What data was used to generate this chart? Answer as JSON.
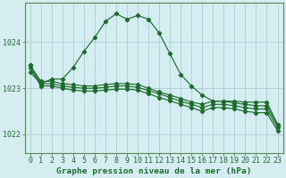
{
  "title": "Graphe pression niveau de la mer (hPa)",
  "background_color": "#d5ecf0",
  "grid_color": "#aecdd5",
  "line_color": "#1e6b2e",
  "xlim": [
    -0.5,
    23.5
  ],
  "ylim": [
    1021.6,
    1024.85
  ],
  "yticks": [
    1022,
    1023,
    1024
  ],
  "xticks": [
    0,
    1,
    2,
    3,
    4,
    5,
    6,
    7,
    8,
    9,
    10,
    11,
    12,
    13,
    14,
    15,
    16,
    17,
    18,
    19,
    20,
    21,
    22,
    23
  ],
  "series1_x": [
    0,
    1,
    2,
    3,
    4,
    5,
    6,
    7,
    8,
    9,
    10,
    11,
    12,
    13,
    14,
    15,
    16,
    17,
    18,
    19,
    20,
    21,
    22,
    23
  ],
  "series1_y": [
    1023.35,
    1023.1,
    1023.2,
    1023.2,
    1023.45,
    1023.8,
    1024.1,
    1024.45,
    1024.62,
    1024.5,
    1024.58,
    1024.5,
    1024.2,
    1023.75,
    1023.3,
    1023.05,
    1022.85,
    1022.72,
    1022.72,
    1022.72,
    1022.7,
    1022.7,
    1022.7,
    1022.22
  ],
  "series2_x": [
    0,
    1,
    2,
    3,
    4,
    5,
    6,
    7,
    8,
    9,
    10,
    11,
    12,
    13,
    14,
    15,
    16,
    17,
    18,
    19,
    20,
    21,
    22,
    23
  ],
  "series2_y": [
    1023.5,
    1023.15,
    1023.15,
    1023.1,
    1023.08,
    1023.05,
    1023.05,
    1023.08,
    1023.1,
    1023.1,
    1023.08,
    1023.0,
    1022.92,
    1022.85,
    1022.78,
    1022.7,
    1022.65,
    1022.72,
    1022.72,
    1022.68,
    1022.65,
    1022.62,
    1022.62,
    1022.2
  ],
  "series3_x": [
    0,
    1,
    2,
    3,
    4,
    5,
    6,
    7,
    8,
    9,
    10,
    11,
    12,
    13,
    14,
    15,
    16,
    17,
    18,
    19,
    20,
    21,
    22,
    23
  ],
  "series3_y": [
    1023.5,
    1023.1,
    1023.1,
    1023.05,
    1023.02,
    1023.0,
    1023.0,
    1023.02,
    1023.05,
    1023.05,
    1023.02,
    1022.95,
    1022.88,
    1022.8,
    1022.72,
    1022.65,
    1022.58,
    1022.65,
    1022.65,
    1022.62,
    1022.58,
    1022.55,
    1022.55,
    1022.15
  ],
  "series4_x": [
    0,
    1,
    2,
    3,
    4,
    5,
    6,
    7,
    8,
    9,
    10,
    11,
    12,
    13,
    14,
    15,
    16,
    17,
    18,
    19,
    20,
    21,
    22,
    23
  ],
  "series4_y": [
    1023.45,
    1023.05,
    1023.05,
    1023.0,
    1022.96,
    1022.94,
    1022.94,
    1022.96,
    1022.98,
    1022.98,
    1022.96,
    1022.88,
    1022.8,
    1022.73,
    1022.65,
    1022.58,
    1022.5,
    1022.58,
    1022.58,
    1022.55,
    1022.5,
    1022.47,
    1022.47,
    1022.08
  ],
  "tick_fontsize": 6,
  "title_fontsize": 6.8,
  "marker_size": 2.2,
  "linewidth": 0.85
}
